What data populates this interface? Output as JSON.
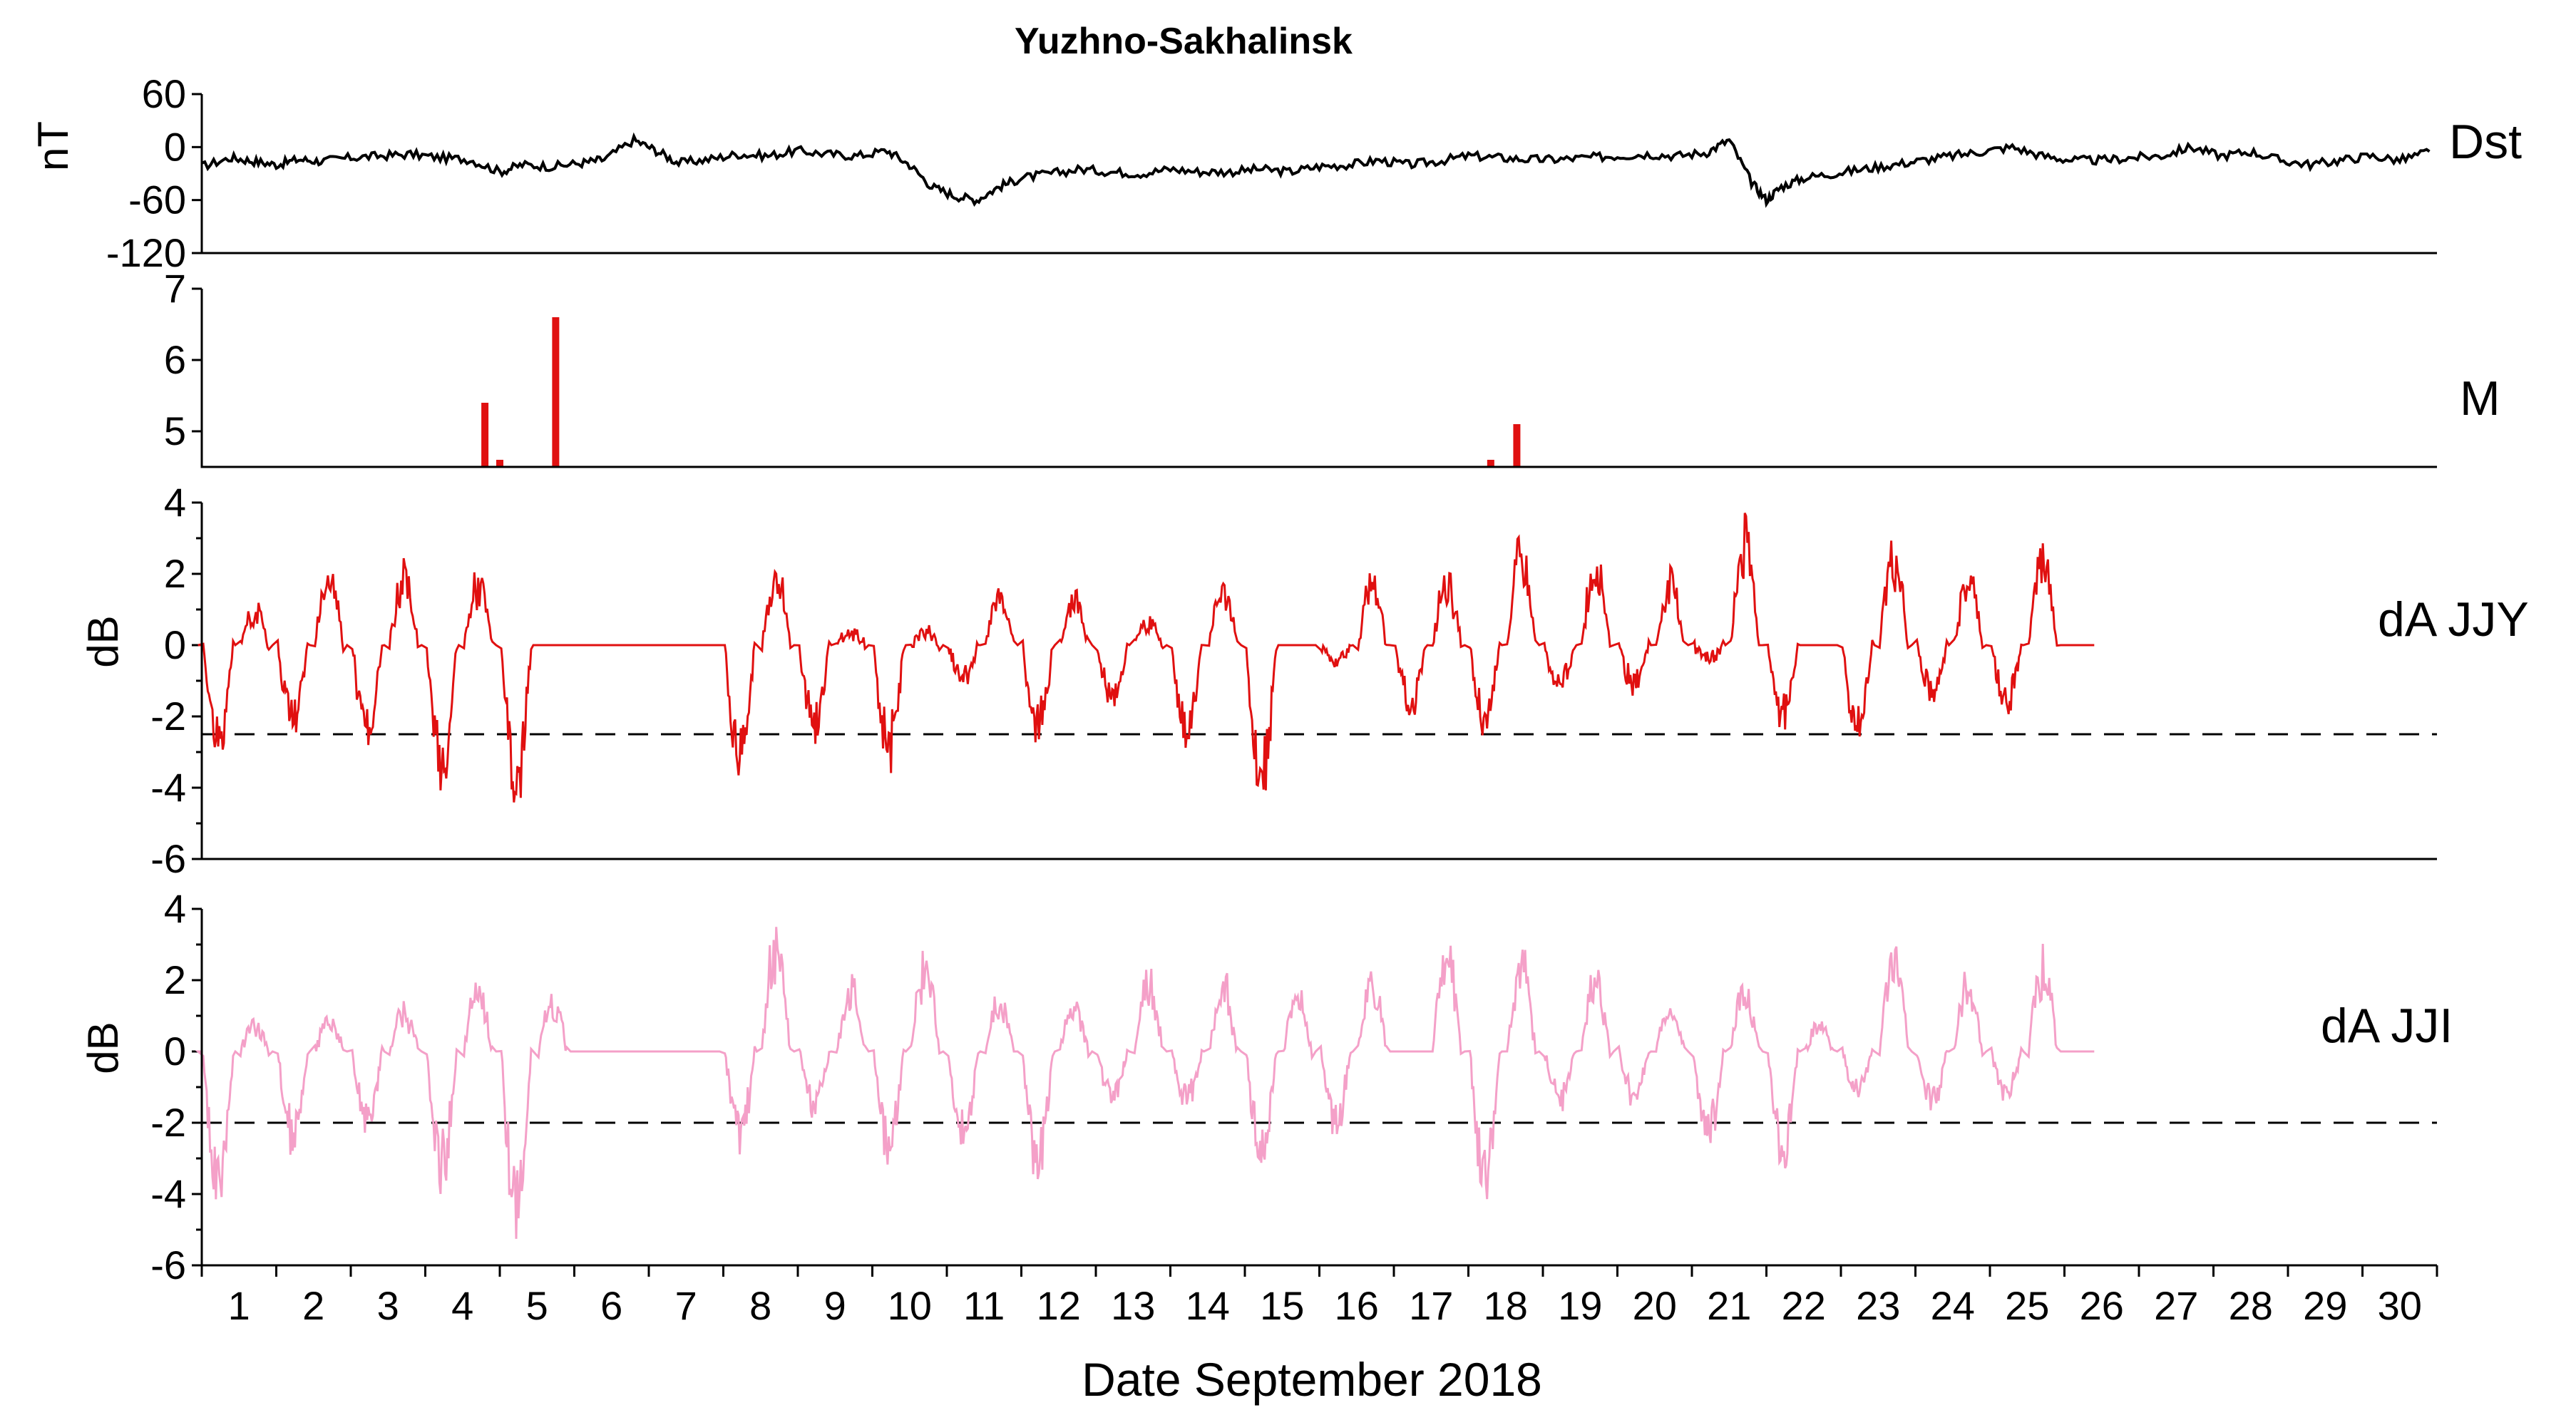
{
  "chart_data": {
    "type": "line",
    "title": "Yuzhno-Sakhalinsk",
    "xlabel": "Date September 2018",
    "xlim": [
      0.5,
      30.5
    ],
    "x_ticks": [
      "1",
      "2",
      "3",
      "4",
      "5",
      "6",
      "7",
      "8",
      "9",
      "10",
      "11",
      "12",
      "13",
      "14",
      "15",
      "16",
      "17",
      "18",
      "19",
      "20",
      "21",
      "22",
      "23",
      "24",
      "25",
      "26",
      "27",
      "28",
      "29",
      "30"
    ],
    "colors": {
      "dst": "#000000",
      "quake": "#e01010",
      "jjy": "#e01010",
      "jji": "#f4a0c8",
      "threshold": "#000000"
    },
    "panels": [
      {
        "id": "dst",
        "label": "Dst",
        "ylabel": "nT",
        "ylim": [
          -120,
          60
        ],
        "yticks": [
          "60",
          "0",
          "-60",
          "-120"
        ],
        "series": [
          {
            "x": [
              0.5,
              0.9,
              1.2,
              1.5,
              1.8,
              2.1,
              2.5,
              2.9,
              3.3,
              3.7,
              4.1,
              4.5,
              4.8,
              5.2,
              5.6,
              5.9,
              6.3,
              6.6,
              6.9,
              7.3,
              7.7,
              8.1,
              8.5,
              8.9,
              9.3,
              9.7,
              10.0,
              10.3,
              10.6,
              10.9,
              11.2,
              11.5,
              11.9,
              12.3,
              12.7,
              13.1,
              13.5,
              13.9,
              14.3,
              14.7,
              15.1,
              15.5,
              15.9,
              16.3,
              16.7,
              17.1,
              17.5,
              17.9,
              18.3,
              18.7,
              19.1,
              19.5,
              19.9,
              20.3,
              20.7,
              21.0,
              21.3,
              21.5,
              21.7,
              22.0,
              22.4,
              22.8,
              23.2,
              23.6,
              24.0,
              24.4,
              24.8,
              25.2,
              25.6,
              26.0,
              26.4,
              26.8,
              27.2,
              27.6,
              28.0,
              28.4,
              28.8,
              29.2,
              29.6,
              30.0,
              30.4
            ],
            "y": [
              -22,
              -12,
              -16,
              -20,
              -14,
              -16,
              -12,
              -10,
              -8,
              -12,
              -14,
              -28,
              -20,
              -22,
              -18,
              -14,
              8,
              -4,
              -18,
              -14,
              -8,
              -10,
              -4,
              -8,
              -10,
              -4,
              -20,
              -45,
              -55,
              -60,
              -45,
              -35,
              -30,
              -25,
              -28,
              -30,
              -25,
              -28,
              -28,
              -25,
              -28,
              -22,
              -20,
              -15,
              -20,
              -16,
              -10,
              -12,
              -14,
              -14,
              -12,
              -10,
              -8,
              -10,
              -6,
              8,
              -40,
              -60,
              -45,
              -35,
              -30,
              -25,
              -20,
              -15,
              -10,
              -5,
              0,
              -10,
              -15,
              -15,
              -12,
              -10,
              0,
              -10,
              -5,
              -15,
              -20,
              -15,
              -10,
              -15,
              -5
            ]
          }
        ]
      },
      {
        "id": "quakes",
        "label": "M",
        "ylabel": "",
        "ylim": [
          4.5,
          7
        ],
        "yticks": [
          "7",
          "6",
          "5"
        ],
        "events": [
          {
            "day": 4.3,
            "mag": 5.4
          },
          {
            "day": 4.5,
            "mag": 4.6
          },
          {
            "day": 5.25,
            "mag": 6.6
          },
          {
            "day": 17.8,
            "mag": 4.6
          },
          {
            "day": 18.15,
            "mag": 5.1
          }
        ]
      },
      {
        "id": "jjy",
        "label": "dA JJY",
        "ylabel": "dB",
        "ylim": [
          -6,
          4
        ],
        "yticks": [
          "4",
          "2",
          "0",
          "-2",
          "-4",
          "-6"
        ],
        "threshold": -2.5,
        "active_until": 25.9,
        "night_peak": [
          1.2,
          2.5,
          2.4,
          2.2,
          0,
          0,
          0,
          2.4,
          0.5,
          0.5,
          1.8,
          1.7,
          0.9,
          2.0,
          0,
          2.3,
          2.2,
          3.1,
          2.9,
          2.1,
          3.6,
          0,
          3.2,
          2.3,
          3.2
        ],
        "day_min": [
          -3.3,
          -2.6,
          -3.1,
          -4.2,
          -4.7,
          0,
          0,
          -4.0,
          -3.0,
          -3.6,
          -1.2,
          -3.0,
          -1.8,
          -3.1,
          -4.7,
          -0.6,
          -2.1,
          -2.6,
          -1.3,
          -1.4,
          -0.5,
          -2.5,
          -2.7,
          -1.7,
          -2.0
        ]
      },
      {
        "id": "jji",
        "label": "dA JJI",
        "ylabel": "dB",
        "ylim": [
          -6,
          4
        ],
        "yticks": [
          "4",
          "2",
          "0",
          "-2",
          "-4",
          "-6"
        ],
        "threshold": -2,
        "active_until": 25.9,
        "night_peak": [
          0.9,
          1.1,
          1.4,
          2.2,
          1.7,
          0,
          0,
          3.8,
          2.2,
          3.2,
          1.7,
          1.6,
          2.5,
          2.3,
          1.8,
          2.5,
          3.5,
          3.0,
          2.5,
          1.5,
          2.2,
          1.0,
          3.3,
          2.3,
          3.1
        ],
        "day_min": [
          -4.8,
          -2.9,
          -2.5,
          -4.0,
          -5.4,
          0,
          0,
          -2.9,
          -1.8,
          -3.3,
          -2.8,
          -3.9,
          -1.5,
          -1.7,
          -3.6,
          -2.4,
          0,
          -4.5,
          -1.7,
          -1.6,
          -2.9,
          -3.5,
          -1.4,
          -1.8,
          -1.4
        ]
      }
    ]
  }
}
